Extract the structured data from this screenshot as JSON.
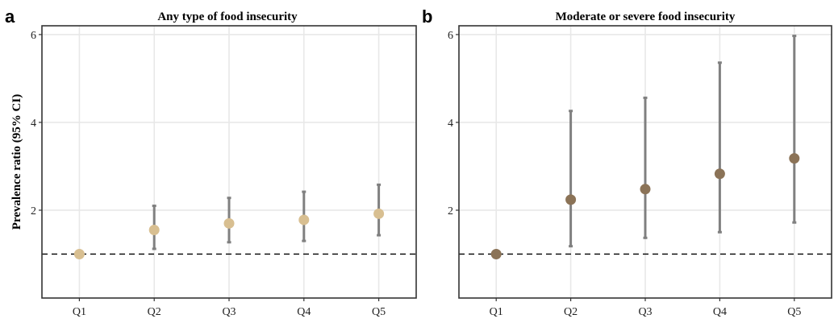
{
  "chart_data": [
    {
      "type": "scatter",
      "panel_letter": "a",
      "title": "Any type of food insecurity",
      "xlabel": "",
      "ylabel": "Prevalence ratio (95% CI)",
      "categories": [
        "Q1",
        "Q2",
        "Q3",
        "Q4",
        "Q5"
      ],
      "ylim": [
        0,
        6.2
      ],
      "yticks": [
        2,
        4,
        6
      ],
      "yticklabels": [
        "2",
        "4",
        "6"
      ],
      "reference_line": 1,
      "point_color": "#d8bf91",
      "ci_color": "#808080",
      "grid": true,
      "series": [
        {
          "estimate": [
            1.0,
            1.55,
            1.7,
            1.78,
            1.92
          ],
          "ci_lower": [
            null,
            1.12,
            1.27,
            1.3,
            1.43
          ],
          "ci_upper": [
            null,
            2.1,
            2.28,
            2.42,
            2.58
          ]
        }
      ]
    },
    {
      "type": "scatter",
      "panel_letter": "b",
      "title": "Moderate or severe food insecurity",
      "xlabel": "",
      "ylabel": "",
      "categories": [
        "Q1",
        "Q2",
        "Q3",
        "Q4",
        "Q5"
      ],
      "ylim": [
        0,
        6.2
      ],
      "yticks": [
        2,
        4,
        6
      ],
      "yticklabels": [
        "2",
        "4",
        "6"
      ],
      "reference_line": 1,
      "point_color": "#8b7357",
      "ci_color": "#808080",
      "grid": true,
      "series": [
        {
          "estimate": [
            1.0,
            2.24,
            2.48,
            2.83,
            3.18
          ],
          "ci_lower": [
            null,
            1.18,
            1.37,
            1.5,
            1.72
          ],
          "ci_upper": [
            null,
            4.26,
            4.56,
            5.36,
            5.97
          ]
        }
      ]
    }
  ]
}
